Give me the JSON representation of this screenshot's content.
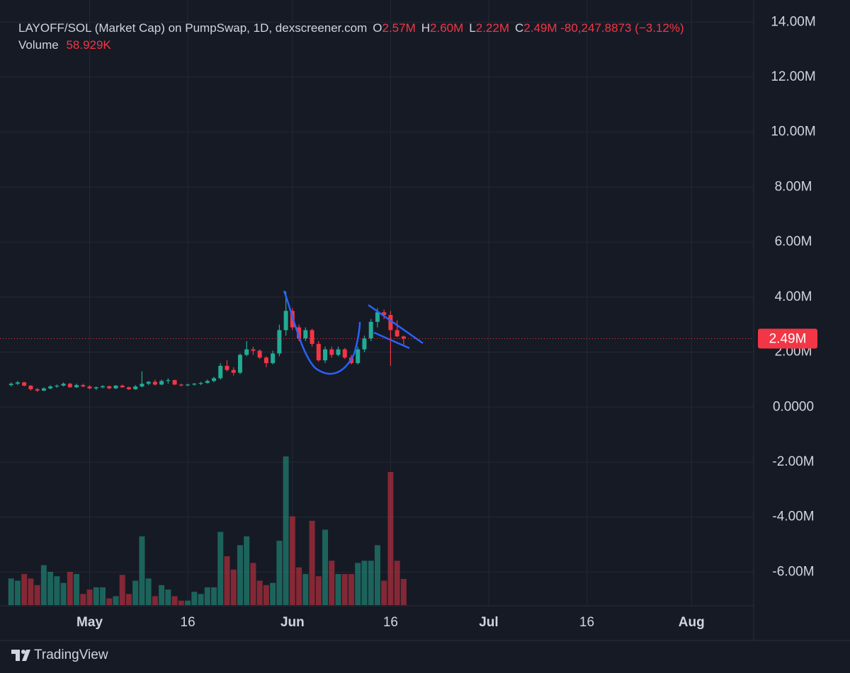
{
  "chart_data": {
    "type": "candlestick",
    "title": "LAYOFF/SOL (Market Cap) on PumpSwap, 1D, dexscreener.com",
    "readout": [
      {
        "key": "O",
        "value": "2.57M"
      },
      {
        "key": "H",
        "value": "2.60M"
      },
      {
        "key": "L",
        "value": "2.22M"
      },
      {
        "key": "C",
        "value": "2.49M"
      }
    ],
    "change": "-80,247.8873 (−3.12%)",
    "volume_title": "Volume",
    "volume_readout": "58.929K",
    "x": [
      -12,
      -11,
      -10,
      -9,
      -8,
      -7,
      -6,
      -5,
      -4,
      -3,
      -2,
      -1,
      0,
      1,
      2,
      3,
      4,
      5,
      6,
      7,
      8,
      9,
      10,
      11,
      12,
      13,
      14,
      15,
      16,
      17,
      18,
      19,
      20,
      21,
      22,
      23,
      24,
      25,
      26,
      27,
      28,
      29,
      30,
      31,
      32,
      33,
      34,
      35,
      36,
      37,
      38,
      39,
      40,
      41,
      42,
      43,
      44,
      45,
      46,
      47,
      48
    ],
    "open": [
      800000,
      850000,
      900000,
      780000,
      650000,
      600000,
      680000,
      750000,
      780000,
      850000,
      720000,
      800000,
      750000,
      680000,
      720000,
      760000,
      680000,
      780000,
      720000,
      650000,
      750000,
      850000,
      920000,
      820000,
      950000,
      980000,
      820000,
      800000,
      820000,
      850000,
      880000,
      950000,
      1050000,
      1500000,
      1350000,
      1250000,
      1900000,
      2100000,
      2050000,
      1800000,
      1600000,
      1950000,
      2800000,
      3500000,
      2900000,
      2500000,
      2800000,
      2300000,
      1700000,
      2100000,
      1900000,
      2100000,
      1800000,
      1600000,
      2100000,
      2500000,
      3100000,
      3450000,
      3350000,
      2800000,
      2570000
    ],
    "high": [
      900000,
      950000,
      920000,
      800000,
      700000,
      720000,
      800000,
      820000,
      900000,
      880000,
      850000,
      850000,
      800000,
      750000,
      800000,
      780000,
      800000,
      820000,
      750000,
      800000,
      1300000,
      950000,
      1000000,
      1000000,
      1050000,
      1000000,
      850000,
      850000,
      880000,
      920000,
      1000000,
      1100000,
      1600000,
      1700000,
      1450000,
      1950000,
      2400000,
      2200000,
      2100000,
      1850000,
      2050000,
      3000000,
      4200000,
      3600000,
      3000000,
      2900000,
      2850000,
      2400000,
      2200000,
      2200000,
      2200000,
      2150000,
      1900000,
      2200000,
      2600000,
      3200000,
      3600000,
      3550000,
      3500000,
      3150000,
      2600000
    ],
    "low": [
      750000,
      800000,
      750000,
      600000,
      550000,
      580000,
      650000,
      700000,
      750000,
      700000,
      700000,
      720000,
      650000,
      620000,
      680000,
      650000,
      660000,
      700000,
      620000,
      630000,
      720000,
      800000,
      780000,
      800000,
      850000,
      800000,
      750000,
      760000,
      780000,
      800000,
      850000,
      900000,
      1000000,
      1300000,
      1150000,
      1200000,
      1850000,
      1900000,
      1750000,
      1450000,
      1550000,
      1850000,
      2600000,
      2800000,
      2400000,
      2400000,
      2200000,
      1650000,
      1600000,
      1800000,
      1850000,
      1750000,
      1550000,
      1550000,
      2000000,
      2400000,
      2900000,
      3200000,
      1500000,
      2550000,
      2220000
    ],
    "close": [
      850000,
      900000,
      780000,
      650000,
      600000,
      680000,
      750000,
      780000,
      850000,
      720000,
      800000,
      750000,
      680000,
      720000,
      760000,
      680000,
      780000,
      720000,
      650000,
      750000,
      850000,
      920000,
      820000,
      950000,
      980000,
      820000,
      800000,
      820000,
      850000,
      880000,
      950000,
      1050000,
      1500000,
      1350000,
      1250000,
      1900000,
      2100000,
      2050000,
      1800000,
      1600000,
      1950000,
      2800000,
      3500000,
      2900000,
      2500000,
      2800000,
      2300000,
      1700000,
      2100000,
      1900000,
      2100000,
      1800000,
      1600000,
      2100000,
      2500000,
      3100000,
      3450000,
      3350000,
      2800000,
      2570000,
      2490000
    ],
    "volume": [
      60000,
      55000,
      70000,
      60000,
      45000,
      90000,
      75000,
      65000,
      50000,
      75000,
      70000,
      25000,
      35000,
      40000,
      40000,
      15000,
      20000,
      68000,
      25000,
      55000,
      155000,
      60000,
      20000,
      45000,
      35000,
      20000,
      10000,
      10000,
      30000,
      25000,
      40000,
      40000,
      165000,
      110000,
      80000,
      135000,
      155000,
      95000,
      55000,
      45000,
      50000,
      145000,
      335000,
      200000,
      85000,
      70000,
      190000,
      65000,
      170000,
      100000,
      70000,
      70000,
      70000,
      95000,
      100000,
      100000,
      135000,
      55000,
      300000,
      100000,
      58929
    ],
    "up_color": "#22ab94",
    "down_color": "#f23645",
    "xlim": [
      -13.7,
      101.5
    ],
    "xticks": [
      {
        "value": 0,
        "label": "May"
      },
      {
        "value": 15,
        "label": "16"
      },
      {
        "value": 31,
        "label": "Jun"
      },
      {
        "value": 46,
        "label": "16"
      },
      {
        "value": 61,
        "label": "Jul"
      },
      {
        "value": 76,
        "label": "16"
      },
      {
        "value": 92,
        "label": "Aug"
      }
    ],
    "ylim": [
      -7200000,
      14600000
    ],
    "yticks": [
      {
        "value": 14000000,
        "label": "14.00M"
      },
      {
        "value": 12000000,
        "label": "12.00M"
      },
      {
        "value": 10000000,
        "label": "10.00M"
      },
      {
        "value": 8000000,
        "label": "8.00M"
      },
      {
        "value": 6000000,
        "label": "6.00M"
      },
      {
        "value": 4000000,
        "label": "4.00M"
      },
      {
        "value": 2000000,
        "label": "2.00M"
      },
      {
        "value": 0,
        "label": "0.0000"
      },
      {
        "value": -2000000,
        "label": "-2.00M"
      },
      {
        "value": -4000000,
        "label": "-4.00M"
      },
      {
        "value": -6000000,
        "label": "-6.00M"
      }
    ],
    "last_price": {
      "value": 2490000,
      "label": "2.49M"
    },
    "grid": true,
    "brand": "TradingView"
  }
}
